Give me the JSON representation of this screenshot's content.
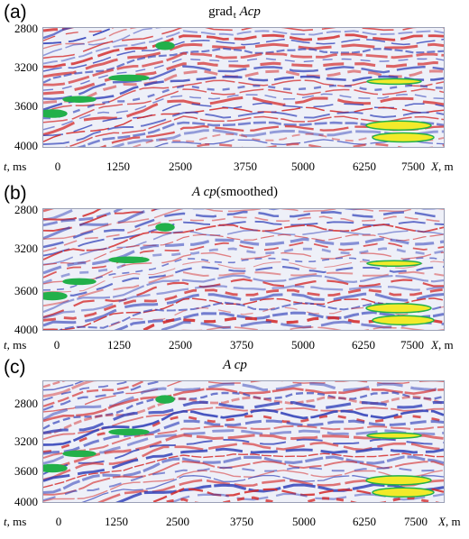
{
  "panels": [
    {
      "letter": "(a)",
      "title_main": "grad",
      "title_sub": "t",
      "title_var": "Acp",
      "title_extra": "",
      "y_ticks": [
        "2800",
        "3200",
        "3600",
        "4000"
      ],
      "x_ticks": [
        "0",
        "1250",
        "2500",
        "3750",
        "5000",
        "6250",
        "7500"
      ],
      "y_axis_label_var": "t",
      "y_axis_label_unit": ", ms",
      "x_axis_label_var": "X",
      "x_axis_label_unit": ", m"
    },
    {
      "letter": "(b)",
      "title_main": "",
      "title_sub": "",
      "title_var": "A cp",
      "title_extra": "(smoothed)",
      "y_ticks": [
        "2800",
        "3200",
        "3600",
        "4000"
      ],
      "x_ticks": [
        "0",
        "1250",
        "2500",
        "3750",
        "5000",
        "6250",
        "7500"
      ],
      "y_axis_label_var": "t",
      "y_axis_label_unit": ", ms",
      "x_axis_label_var": "X",
      "x_axis_label_unit": ", m"
    },
    {
      "letter": "(c)",
      "title_main": "",
      "title_sub": "",
      "title_var": "A cp",
      "title_extra": "",
      "y_ticks": [
        "2800",
        "3200",
        "3600",
        "4000"
      ],
      "x_ticks": [
        "0",
        "1250",
        "2500",
        "3750",
        "5000",
        "6250",
        "7500"
      ],
      "y_axis_label_var": "t",
      "y_axis_label_unit": ", ms",
      "x_axis_label_var": "X",
      "x_axis_label_unit": ", m"
    }
  ],
  "colors": {
    "positive": "#d42a2a",
    "negative": "#2f3fb8",
    "background": "#eef0f8",
    "anomaly_green": "#22b04a",
    "anomaly_yellow": "#f2ea2a"
  }
}
